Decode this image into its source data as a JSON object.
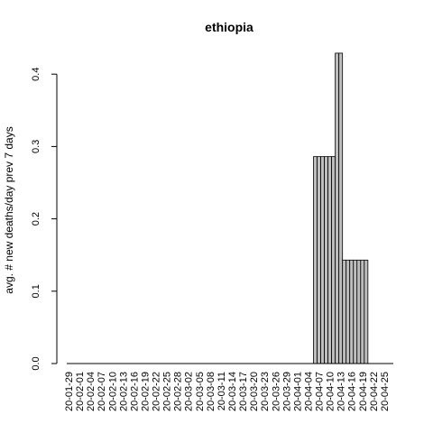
{
  "chart_data": {
    "type": "bar",
    "title": "ethiopia",
    "xlabel": "",
    "ylabel": "avg. # new deaths/day prev  7  days",
    "ylim": [
      0,
      0.43
    ],
    "y_ticks": [
      "0.0",
      "0.1",
      "0.2",
      "0.3",
      "0.4"
    ],
    "x_tick_labels": [
      "20-01-29",
      "20-02-01",
      "20-02-04",
      "20-02-07",
      "20-02-10",
      "20-02-13",
      "20-02-16",
      "20-02-19",
      "20-02-22",
      "20-02-25",
      "20-02-28",
      "20-03-02",
      "20-03-05",
      "20-03-08",
      "20-03-11",
      "20-03-14",
      "20-03-17",
      "20-03-20",
      "20-03-23",
      "20-03-26",
      "20-03-29",
      "20-04-01",
      "20-04-04",
      "20-04-07",
      "20-04-10",
      "20-04-13",
      "20-04-16",
      "20-04-19",
      "20-04-22",
      "20-04-25"
    ],
    "categories": [
      "20-01-29",
      "20-01-30",
      "20-01-31",
      "20-02-01",
      "20-02-02",
      "20-02-03",
      "20-02-04",
      "20-02-05",
      "20-02-06",
      "20-02-07",
      "20-02-08",
      "20-02-09",
      "20-02-10",
      "20-02-11",
      "20-02-12",
      "20-02-13",
      "20-02-14",
      "20-02-15",
      "20-02-16",
      "20-02-17",
      "20-02-18",
      "20-02-19",
      "20-02-20",
      "20-02-21",
      "20-02-22",
      "20-02-23",
      "20-02-24",
      "20-02-25",
      "20-02-26",
      "20-02-27",
      "20-02-28",
      "20-02-29",
      "20-03-01",
      "20-03-02",
      "20-03-03",
      "20-03-04",
      "20-03-05",
      "20-03-06",
      "20-03-07",
      "20-03-08",
      "20-03-09",
      "20-03-10",
      "20-03-11",
      "20-03-12",
      "20-03-13",
      "20-03-14",
      "20-03-15",
      "20-03-16",
      "20-03-17",
      "20-03-18",
      "20-03-19",
      "20-03-20",
      "20-03-21",
      "20-03-22",
      "20-03-23",
      "20-03-24",
      "20-03-25",
      "20-03-26",
      "20-03-27",
      "20-03-28",
      "20-03-29",
      "20-03-30",
      "20-03-31",
      "20-04-01",
      "20-04-02",
      "20-04-03",
      "20-04-04",
      "20-04-05",
      "20-04-06",
      "20-04-07",
      "20-04-08",
      "20-04-09",
      "20-04-10",
      "20-04-11",
      "20-04-12",
      "20-04-13",
      "20-04-14",
      "20-04-15",
      "20-04-16",
      "20-04-17",
      "20-04-18",
      "20-04-19",
      "20-04-20",
      "20-04-21",
      "20-04-22",
      "20-04-23",
      "20-04-24",
      "20-04-25",
      "20-04-26",
      "20-04-27"
    ],
    "values": [
      0,
      0,
      0,
      0,
      0,
      0,
      0,
      0,
      0,
      0,
      0,
      0,
      0,
      0,
      0,
      0,
      0,
      0,
      0,
      0,
      0,
      0,
      0,
      0,
      0,
      0,
      0,
      0,
      0,
      0,
      0,
      0,
      0,
      0,
      0,
      0,
      0,
      0,
      0,
      0,
      0,
      0,
      0,
      0,
      0,
      0,
      0,
      0,
      0,
      0,
      0,
      0,
      0,
      0,
      0,
      0,
      0,
      0,
      0,
      0,
      0,
      0,
      0,
      0,
      0,
      0,
      0,
      0,
      0.286,
      0.286,
      0.286,
      0.286,
      0.286,
      0.286,
      0.429,
      0.429,
      0.143,
      0.143,
      0.143,
      0.143,
      0.143,
      0.143,
      0.143,
      0,
      0,
      0,
      0,
      0,
      0,
      0
    ]
  }
}
